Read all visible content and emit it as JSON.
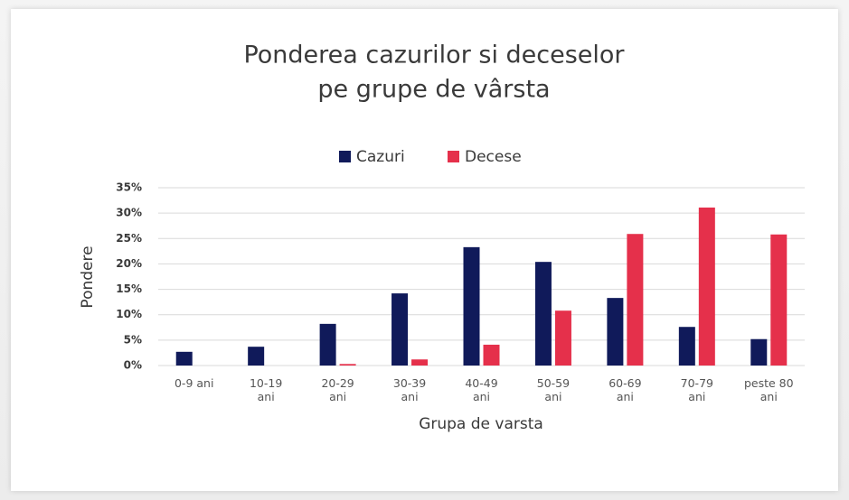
{
  "chart_data": {
    "type": "bar",
    "title": "Ponderea cazurilor si deceselor",
    "subtitle": "pe grupe de vârsta",
    "x_label": "Grupa de varsta",
    "y_label": "Pondere",
    "categories": [
      "0-9 ani",
      "10-19\nani",
      "20-29\nani",
      "30-39\nani",
      "40-49\nani",
      "50-59\nani",
      "60-69\nani",
      "70-79\nani",
      "peste 80\nani"
    ],
    "series": [
      {
        "name": "Cazuri",
        "color": "#101a5a",
        "values": [
          2.7,
          3.7,
          8.2,
          14.2,
          23.3,
          20.4,
          13.3,
          7.6,
          5.2
        ]
      },
      {
        "name": "Decese",
        "color": "#e5304b",
        "values": [
          0,
          0,
          0.3,
          1.2,
          4.1,
          10.8,
          25.9,
          31.1,
          25.8
        ]
      }
    ],
    "ylim": [
      0,
      35
    ],
    "yticks": [
      {
        "value": 0,
        "label": "0%"
      },
      {
        "value": 5,
        "label": "5%"
      },
      {
        "value": 10,
        "label": "10%"
      },
      {
        "value": 15,
        "label": "15%"
      },
      {
        "value": 20,
        "label": "20%"
      },
      {
        "value": 25,
        "label": "25%"
      },
      {
        "value": 30,
        "label": "30%"
      },
      {
        "value": 35,
        "label": "35%"
      }
    ],
    "grid": true,
    "legend": "top"
  }
}
